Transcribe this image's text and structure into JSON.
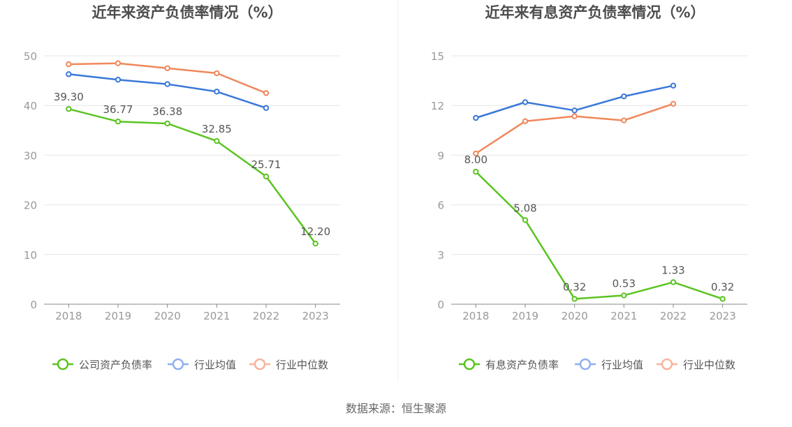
{
  "colors": {
    "company": "#5ac421",
    "industry_avg": "#3a78d8",
    "industry_median": "#f0875a",
    "legend_avg": "#8fb0ee",
    "legend_median": "#f7b49a",
    "axis_text": "#999999",
    "title_text": "#4d4d4d",
    "grid": "#e6e6e6",
    "label_text": "#555555"
  },
  "chart_data": [
    {
      "type": "line",
      "title": "近年来资产负债率情况（%）",
      "categories": [
        "2018",
        "2019",
        "2020",
        "2021",
        "2022",
        "2023"
      ],
      "yticks": [
        "0",
        "10",
        "20",
        "30",
        "40",
        "50"
      ],
      "ylim": [
        0,
        50
      ],
      "grid": true,
      "legend_position": "bottom",
      "series": [
        {
          "name": "公司资产负债率",
          "values": [
            39.3,
            36.77,
            36.38,
            32.85,
            25.71,
            12.2
          ],
          "labels": [
            "39.30",
            "36.77",
            "36.38",
            "32.85",
            "25.71",
            "12.20"
          ]
        },
        {
          "name": "行业均值",
          "values": [
            46.3,
            45.2,
            44.3,
            42.8,
            39.5,
            null
          ]
        },
        {
          "name": "行业中位数",
          "values": [
            48.3,
            48.5,
            47.5,
            46.5,
            42.5,
            null
          ]
        }
      ]
    },
    {
      "type": "line",
      "title": "近年来有息资产负债率情况（%）",
      "categories": [
        "2018",
        "2019",
        "2020",
        "2021",
        "2022",
        "2023"
      ],
      "yticks": [
        "0",
        "3",
        "6",
        "9",
        "12",
        "15"
      ],
      "ylim": [
        0,
        15
      ],
      "grid": true,
      "legend_position": "bottom",
      "series": [
        {
          "name": "有息资产负债率",
          "values": [
            8.0,
            5.08,
            0.32,
            0.53,
            1.33,
            0.32
          ],
          "labels": [
            "8.00",
            "5.08",
            "0.32",
            "0.53",
            "1.33",
            "0.32"
          ]
        },
        {
          "name": "行业均值",
          "values": [
            11.25,
            12.2,
            11.7,
            12.55,
            13.2,
            null
          ]
        },
        {
          "name": "行业中位数",
          "values": [
            9.1,
            11.05,
            11.35,
            11.1,
            12.1,
            null
          ]
        }
      ]
    }
  ],
  "footer": {
    "source": "数据来源：恒生聚源"
  }
}
